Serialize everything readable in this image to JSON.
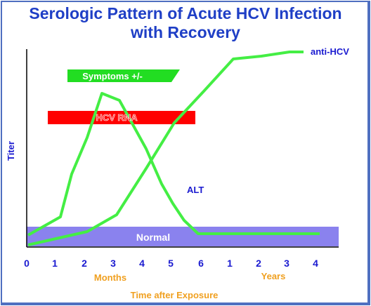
{
  "title_line1": "Serologic Pattern of Acute HCV Infection",
  "title_line2": "with Recovery",
  "y_axis_label": "Titer",
  "x_tick_labels": [
    "0",
    "1",
    "2",
    "3",
    "4",
    "5",
    "6",
    "1",
    "2",
    "3",
    "4"
  ],
  "months_label": "Months",
  "years_label": "Years",
  "x_axis_title": "Time after Exposure",
  "bars": {
    "symptoms": "Symptoms +/-",
    "hcv_rna": "HCV RNA",
    "normal": "Normal"
  },
  "curve_labels": {
    "anti_hcv": "anti-HCV",
    "alt": "ALT"
  },
  "colors": {
    "title": "#1f3fc6",
    "axis_text": "#1a1ad0",
    "units_text": "#f0a020",
    "curve": "#44ee44",
    "symptoms_bar": "#22dd22",
    "hcv_rna_bar": "#ff0000",
    "normal_band": "#8a82ee",
    "frame": "#4f6fc0"
  }
}
